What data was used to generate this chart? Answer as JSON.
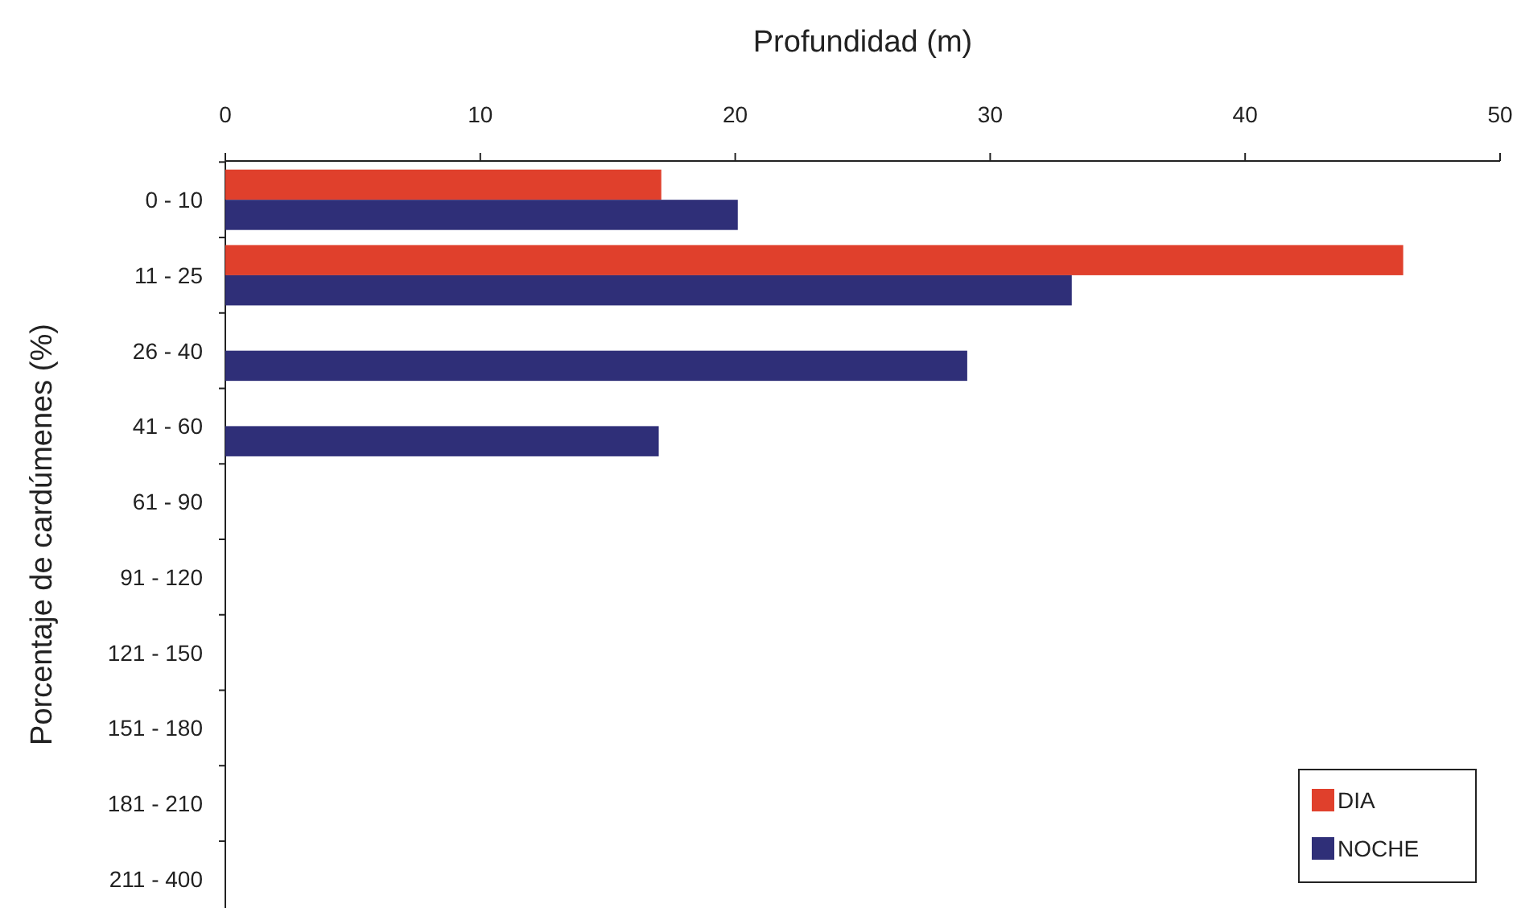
{
  "chart_data": {
    "type": "bar",
    "orientation": "horizontal",
    "xlabel": "Profundidad (m)",
    "ylabel": "Porcentaje de cardúmenes (%)",
    "categories": [
      "0 - 10",
      "11 - 25",
      "26 - 40",
      "41 - 60",
      "61 - 90",
      "91 - 120",
      "121 - 150",
      "151 - 180",
      "181 - 210",
      "211 - 400"
    ],
    "series": [
      {
        "name": "DIA",
        "color": "#e0402c",
        "values": [
          17.1,
          46.2,
          null,
          null,
          null,
          null,
          null,
          null,
          null,
          null
        ]
      },
      {
        "name": "NOCHE",
        "color": "#2f2f78",
        "values": [
          20.1,
          33.2,
          29.1,
          17.0,
          null,
          null,
          null,
          null,
          null,
          null
        ]
      }
    ],
    "xlim": [
      0,
      50
    ],
    "xticks": [
      0,
      10,
      20,
      30,
      40,
      50
    ],
    "grid": false,
    "legend": "bottom right"
  }
}
